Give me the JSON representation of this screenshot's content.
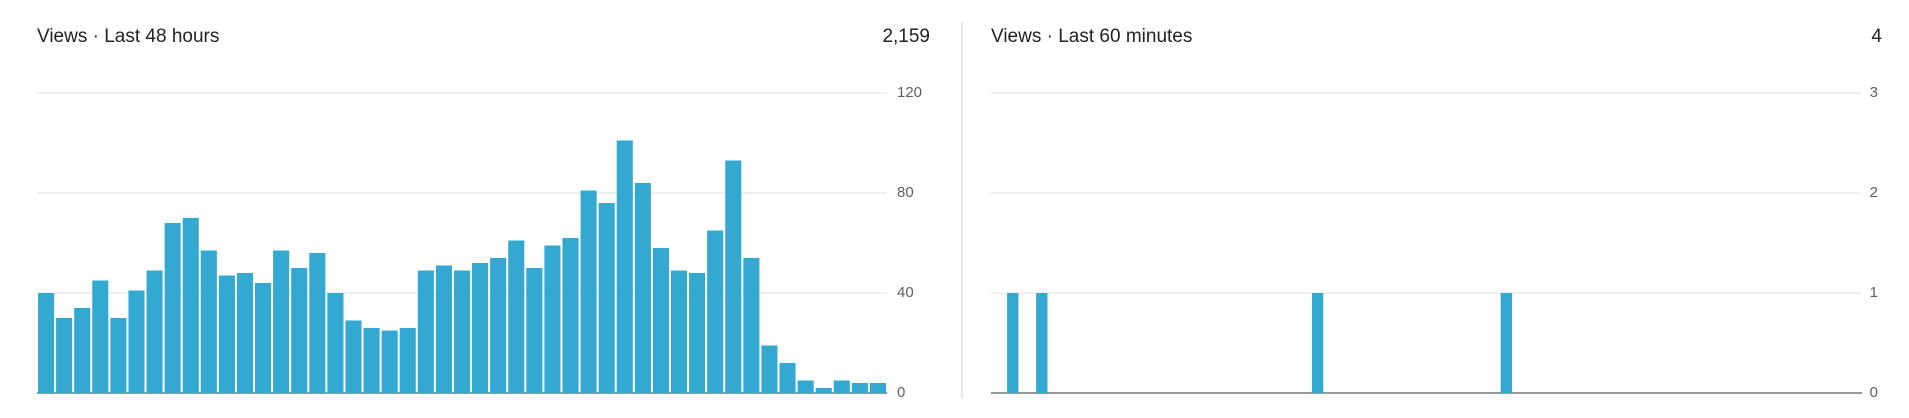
{
  "chart_data": [
    {
      "type": "bar",
      "title": "Views · Last 48 hours",
      "total": "2,159",
      "color": "#33a8d0",
      "values": [
        40,
        30,
        34,
        45,
        30,
        41,
        49,
        68,
        70,
        57,
        47,
        48,
        44,
        57,
        50,
        56,
        40,
        29,
        26,
        25,
        26,
        49,
        51,
        49,
        52,
        54,
        61,
        50,
        59,
        62,
        81,
        76,
        101,
        84,
        58,
        49,
        48,
        65,
        93,
        54,
        19,
        12,
        5,
        2,
        5,
        4,
        4
      ],
      "ylim": [
        0,
        120
      ],
      "yticks": [
        0,
        40,
        80,
        120
      ],
      "grid": true
    },
    {
      "type": "bar",
      "title": "Views · Last 60 minutes",
      "total": "4",
      "color": "#33a8d0",
      "values": [
        0,
        1,
        0,
        1,
        0,
        0,
        0,
        0,
        0,
        0,
        0,
        0,
        0,
        0,
        0,
        0,
        0,
        0,
        0,
        0,
        0,
        0,
        1,
        0,
        0,
        0,
        0,
        0,
        0,
        0,
        0,
        0,
        0,
        0,
        0,
        1,
        0,
        0,
        0,
        0,
        0,
        0,
        0,
        0,
        0,
        0,
        0,
        0,
        0,
        0,
        0,
        0,
        0,
        0,
        0,
        0,
        0,
        0,
        0,
        0
      ],
      "ylim": [
        0,
        3
      ],
      "yticks": [
        0,
        1,
        2,
        3
      ],
      "grid": true
    }
  ]
}
